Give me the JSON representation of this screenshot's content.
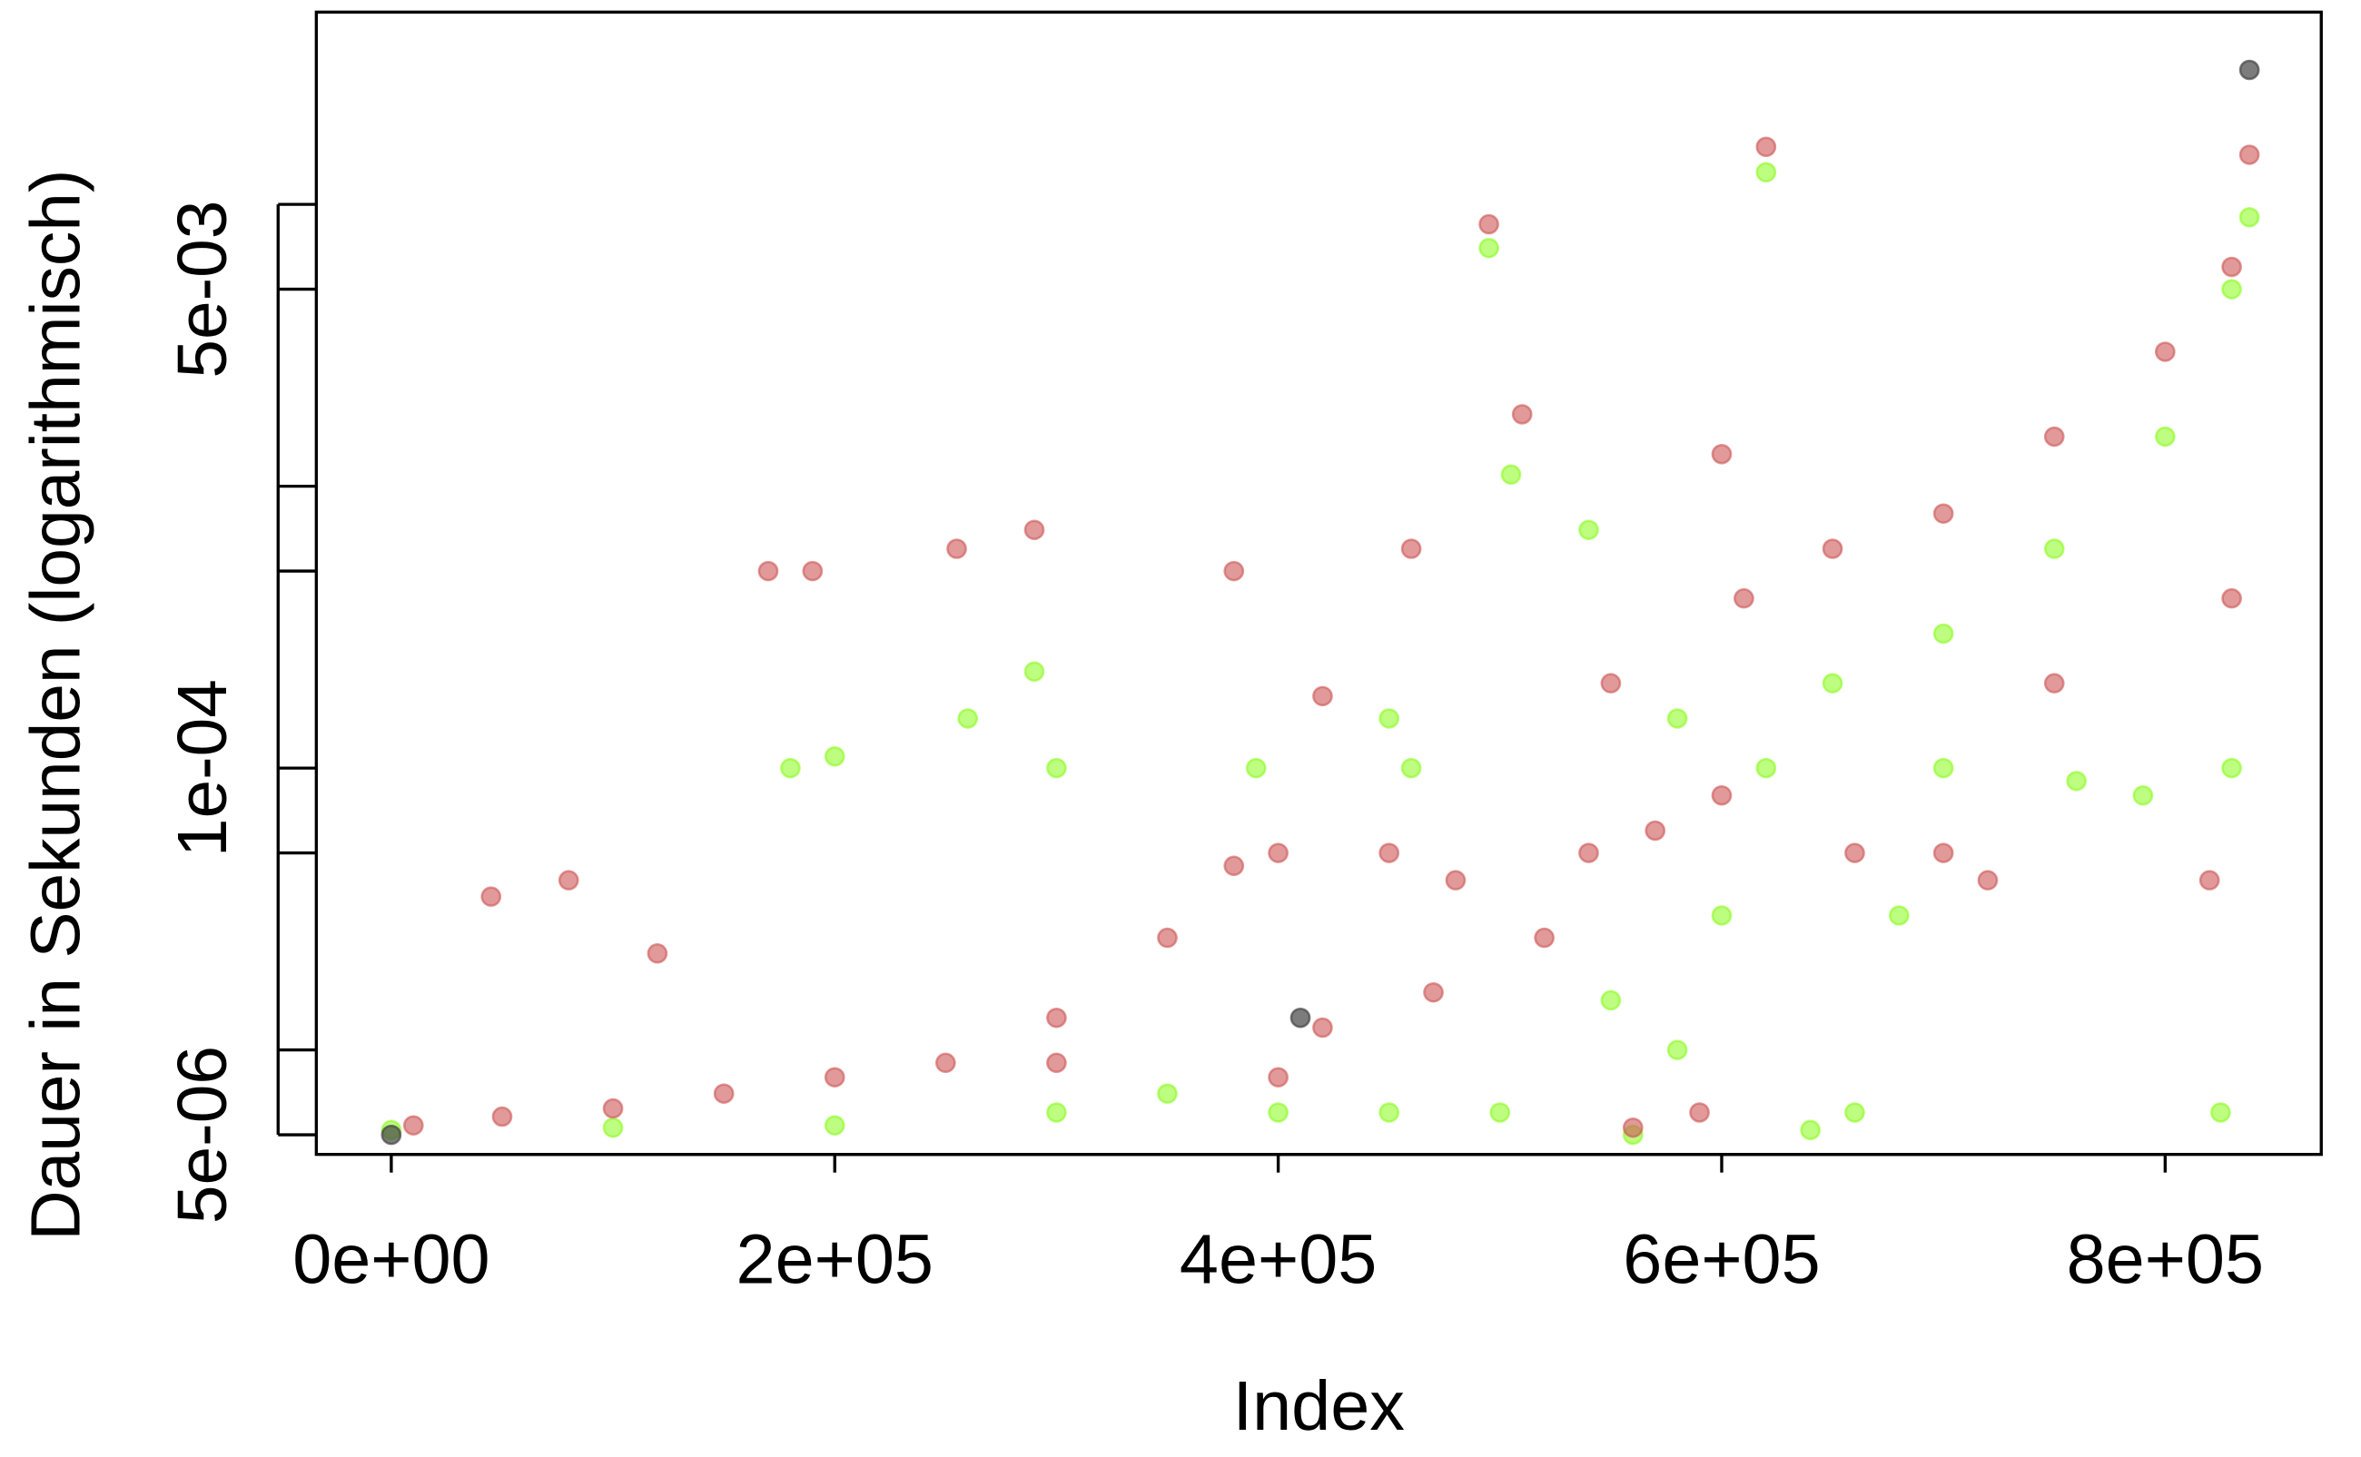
{
  "chart_data": {
    "type": "scatter",
    "x_label": "Index",
    "y_label": "Dauer in Sekunden (logarithmisch)",
    "xlim": [
      -33800,
      870400
    ],
    "xticks": [
      {
        "value": 0,
        "label": "0e+00"
      },
      {
        "value": 200000,
        "label": "2e+05"
      },
      {
        "value": 400000,
        "label": "4e+05"
      },
      {
        "value": 600000,
        "label": "6e+05"
      },
      {
        "value": 800000,
        "label": "8e+05"
      }
    ],
    "ylim": [
      4.26e-06,
      0.0481
    ],
    "log_y": true,
    "yticks": [
      {
        "value": 5e-06,
        "label": "5e-06"
      },
      {
        "value": 0.0001,
        "label": "1e-04"
      },
      {
        "value": 0.005,
        "label": "5e-03"
      }
    ],
    "yticks_unlabeled": [
      1e-05,
      5e-05,
      0.0005,
      0.001,
      0.01
    ],
    "series": [
      {
        "color": "#7cfc00",
        "opacity": 0.5,
        "x": [
          0,
          100000,
          200000,
          300000,
          350000,
          400000,
          450000,
          500000,
          550000,
          560000,
          580000,
          600000,
          620000,
          650000,
          700000,
          750000,
          800000,
          830000,
          838000,
          640000,
          660000,
          680000,
          700000,
          760000,
          790000,
          180000,
          200000,
          260000,
          290000,
          390000,
          460000,
          495000,
          505000,
          620000,
          540000,
          580000,
          830000,
          825000,
          300000,
          450000
        ],
        "values": [
          5.2e-06,
          5.3e-06,
          5.4e-06,
          6e-06,
          7e-06,
          6e-06,
          6e-06,
          6e-06,
          1.5e-05,
          5e-06,
          1e-05,
          3e-05,
          0.0001,
          0.0002,
          0.0003,
          0.0006,
          0.0015,
          0.005,
          0.009,
          5.2e-06,
          6e-06,
          3e-05,
          0.0001,
          9e-05,
          8e-05,
          0.0001,
          0.00011,
          0.00015,
          0.00022,
          0.0001,
          0.0001,
          0.007,
          0.0011,
          0.013,
          0.0007,
          0.00015,
          0.0001,
          6e-06,
          0.0001,
          0.00015
        ]
      },
      {
        "color": "#cd5555",
        "opacity": 0.6,
        "x": [
          10000,
          50000,
          100000,
          150000,
          200000,
          250000,
          300000,
          350000,
          380000,
          400000,
          450000,
          480000,
          420000,
          470000,
          520000,
          540000,
          570000,
          600000,
          610000,
          650000,
          700000,
          750000,
          800000,
          830000,
          838000,
          170000,
          190000,
          290000,
          255000,
          380000,
          460000,
          495000,
          510000,
          620000,
          560000,
          590000,
          660000,
          700000,
          720000,
          45000,
          80000,
          120000,
          550000,
          420000,
          600000,
          400000,
          300000,
          750000,
          830000,
          820000
        ],
        "values": [
          5.4e-06,
          5.8e-06,
          6.2e-06,
          7e-06,
          8e-06,
          9e-06,
          1.3e-05,
          2.5e-05,
          4.5e-05,
          5e-05,
          5e-05,
          4e-05,
          1.2e-05,
          1.6e-05,
          2.5e-05,
          5e-05,
          6e-05,
          8e-05,
          0.0004,
          0.0006,
          0.0008,
          0.0015,
          0.003,
          0.006,
          0.015,
          0.0005,
          0.0005,
          0.0007,
          0.0006,
          0.0005,
          0.0006,
          0.0085,
          0.0018,
          0.016,
          5.3e-06,
          6e-06,
          5e-05,
          5e-05,
          4e-05,
          3.5e-05,
          4e-05,
          2.2e-05,
          0.0002,
          0.00018,
          0.0013,
          8e-06,
          9e-06,
          0.0002,
          0.0004,
          4e-05
        ]
      },
      {
        "color": "#444444",
        "opacity": 0.7,
        "x": [
          0,
          410000,
          838000
        ],
        "values": [
          5e-06,
          1.3e-05,
          0.03
        ]
      }
    ]
  }
}
